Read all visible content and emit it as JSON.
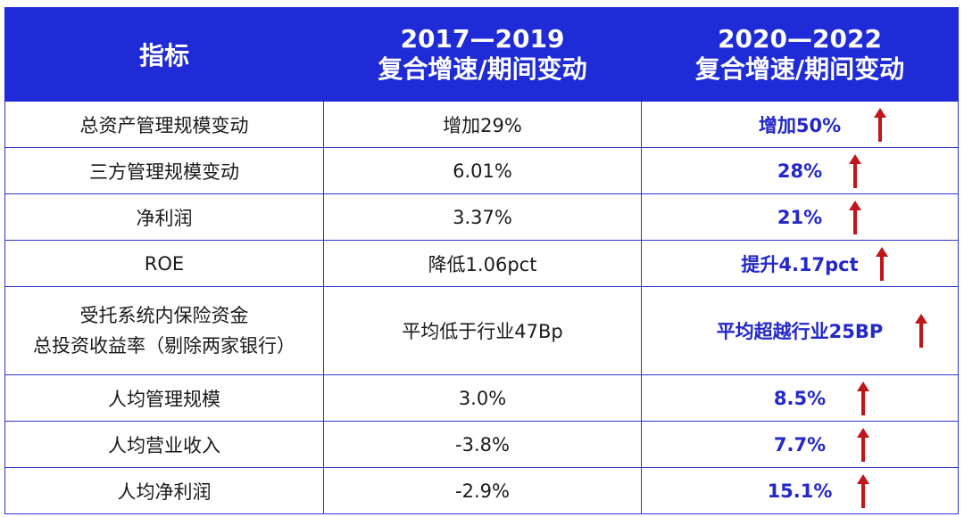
{
  "chart_data": {
    "type": "table",
    "columns": [
      "指标",
      "2017—2019",
      "复合增速/期间变动",
      "2020—2022",
      "复合增速/期间变动"
    ],
    "rows": [
      {
        "metric": "总资产管理规模变动",
        "p1": "增加29%",
        "p2": "增加50%",
        "arrow": "up"
      },
      {
        "metric": "三方管理规模变动",
        "p1": "6.01%",
        "p2": "28%",
        "arrow": "up"
      },
      {
        "metric": "净利润",
        "p1": "3.37%",
        "p2": "21%",
        "arrow": "up"
      },
      {
        "metric": "ROE",
        "p1": "降低1.06pct",
        "p2": "提升4.17pct",
        "arrow": "up"
      },
      {
        "metric_line1": "受托系统内保险资金",
        "metric_line2": "总投资收益率（剔除两家银行）",
        "p1": "平均低于行业47Bp",
        "p2": "平均超越行业25BP",
        "arrow": "up"
      },
      {
        "metric": "人均管理规模",
        "p1": "3.0%",
        "p2": "8.5%",
        "arrow": "up"
      },
      {
        "metric": "人均营业收入",
        "p1": "-3.8%",
        "p2": "7.7%",
        "arrow": "up"
      },
      {
        "metric": "人均净利润",
        "p1": "-2.9%",
        "p2": "15.1%",
        "arrow": "up"
      }
    ]
  },
  "header": {
    "col1": "指标",
    "col2_line1": "2017—2019",
    "col2_line2": "复合增速/期间变动",
    "col3_line1": "2020—2022",
    "col3_line2": "复合增速/期间变动"
  },
  "colors": {
    "header_bg": "#1f2bd6",
    "border": "#2a35c9",
    "highlight_text": "#2328c8",
    "arrow": "#c0151a"
  },
  "icons": {
    "up_arrow": "arrow-up-icon"
  }
}
